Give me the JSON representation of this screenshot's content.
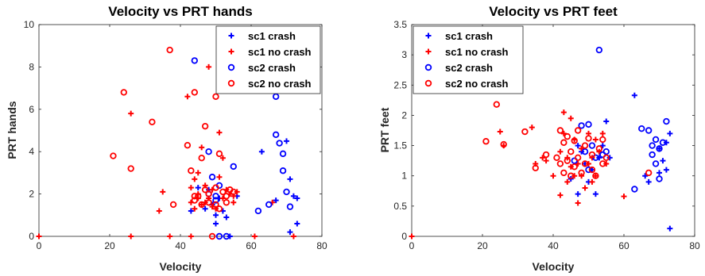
{
  "colors": {
    "sc1_crash": "#0000ff",
    "sc1_no_crash": "#ff0000",
    "sc2_crash": "#0000ff",
    "sc2_no_crash": "#ff0000"
  },
  "chart_data": [
    {
      "type": "scatter",
      "title": "Velocity vs PRT hands",
      "xlabel": "Velocity",
      "ylabel": "PRT hands",
      "xlim": [
        0,
        80
      ],
      "ylim": [
        0,
        10
      ],
      "xticks": [
        "0",
        "20",
        "40",
        "60",
        "80"
      ],
      "yticks": [
        "0",
        "2",
        "4",
        "6",
        "8",
        "10"
      ],
      "legend": {
        "location": "top-right",
        "entries": [
          "sc1 crash",
          "sc1 no crash",
          "sc2 crash",
          "sc2 no crash"
        ]
      },
      "grid": false,
      "series": [
        {
          "name": "sc1 crash",
          "marker": "plus",
          "color": "#0000ff",
          "points": [
            [
              43,
              1.2
            ],
            [
              45,
              2.3
            ],
            [
              47,
              1.3
            ],
            [
              49,
              1.5
            ],
            [
              50,
              1.0
            ],
            [
              51,
              1.8
            ],
            [
              52,
              1.2
            ],
            [
              53,
              0.9
            ],
            [
              54,
              0.0
            ],
            [
              50,
              0.6
            ],
            [
              56,
              1.9
            ],
            [
              63,
              4.0
            ],
            [
              67,
              1.7
            ],
            [
              70,
              4.5
            ],
            [
              71,
              2.7
            ],
            [
              71,
              0.2
            ],
            [
              72,
              1.9
            ],
            [
              73,
              0.6
            ],
            [
              73,
              1.8
            ],
            [
              48,
              2.2
            ]
          ]
        },
        {
          "name": "sc1 no crash",
          "marker": "plus",
          "color": "#ff0000",
          "points": [
            [
              0,
              0.0
            ],
            [
              26,
              5.8
            ],
            [
              26,
              0.0
            ],
            [
              34,
              1.2
            ],
            [
              35,
              2.1
            ],
            [
              37,
              0.0
            ],
            [
              42,
              6.6
            ],
            [
              43,
              0.0
            ],
            [
              43,
              1.6
            ],
            [
              43,
              2.3
            ],
            [
              44,
              1.3
            ],
            [
              45,
              1.8
            ],
            [
              45,
              3.0
            ],
            [
              45,
              2.0
            ],
            [
              46,
              1.5
            ],
            [
              47,
              1.6
            ],
            [
              47,
              2.4
            ],
            [
              48,
              8.0
            ],
            [
              48,
              1.8
            ],
            [
              49,
              1.4
            ],
            [
              49,
              2.2
            ],
            [
              50,
              1.3
            ],
            [
              51,
              4.9
            ],
            [
              51,
              2.8
            ],
            [
              52,
              1.8
            ],
            [
              52,
              3.7
            ],
            [
              53,
              2.2
            ],
            [
              54,
              2.0
            ],
            [
              55,
              1.9
            ],
            [
              55,
              1.6
            ],
            [
              56,
              2.1
            ],
            [
              61,
              0.0
            ],
            [
              66,
              1.6
            ],
            [
              72,
              0.0
            ],
            [
              44,
              2.7
            ],
            [
              46,
              4.2
            ]
          ]
        },
        {
          "name": "sc2 crash",
          "marker": "circle",
          "color": "#0000ff",
          "points": [
            [
              44,
              8.3
            ],
            [
              48,
              4.0
            ],
            [
              48,
              2.0
            ],
            [
              49,
              2.8
            ],
            [
              50,
              1.9
            ],
            [
              51,
              2.4
            ],
            [
              51,
              0.0
            ],
            [
              53,
              0.0
            ],
            [
              55,
              3.3
            ],
            [
              62,
              1.2
            ],
            [
              65,
              1.5
            ],
            [
              67,
              6.6
            ],
            [
              67,
              4.8
            ],
            [
              68,
              4.4
            ],
            [
              69,
              3.9
            ],
            [
              69,
              3.1
            ],
            [
              70,
              2.1
            ],
            [
              71,
              1.4
            ],
            [
              50,
              1.7
            ]
          ]
        },
        {
          "name": "sc2 no crash",
          "marker": "circle",
          "color": "#ff0000",
          "points": [
            [
              21,
              3.8
            ],
            [
              24,
              6.8
            ],
            [
              26,
              3.2
            ],
            [
              32,
              5.4
            ],
            [
              37,
              8.8
            ],
            [
              38,
              1.5
            ],
            [
              42,
              4.3
            ],
            [
              43,
              3.1
            ],
            [
              44,
              6.8
            ],
            [
              44,
              1.7
            ],
            [
              45,
              1.9
            ],
            [
              46,
              3.7
            ],
            [
              46,
              1.5
            ],
            [
              47,
              5.2
            ],
            [
              47,
              2.2
            ],
            [
              48,
              2.0
            ],
            [
              48,
              1.6
            ],
            [
              49,
              0.0
            ],
            [
              50,
              6.6
            ],
            [
              50,
              2.3
            ],
            [
              50,
              1.5
            ],
            [
              51,
              1.3
            ],
            [
              51,
              3.9
            ],
            [
              52,
              2.1
            ],
            [
              53,
              1.9
            ],
            [
              53,
              1.6
            ],
            [
              54,
              2.2
            ],
            [
              55,
              2.1
            ],
            [
              44,
              1.9
            ]
          ]
        }
      ]
    },
    {
      "type": "scatter",
      "title": "Velocity vs PRT feet",
      "xlabel": "Velocity",
      "ylabel": "PRT feet",
      "xlim": [
        0,
        80
      ],
      "ylim": [
        0,
        3.5
      ],
      "xticks": [
        "0",
        "20",
        "40",
        "60",
        "80"
      ],
      "yticks": [
        "0",
        "0.5",
        "1",
        "1.5",
        "2",
        "2.5",
        "3",
        "3.5"
      ],
      "legend": {
        "location": "top-left",
        "entries": [
          "sc1 crash",
          "sc1 no crash",
          "sc2 crash",
          "sc2 no crash"
        ]
      },
      "grid": false,
      "series": [
        {
          "name": "sc1 crash",
          "marker": "plus",
          "color": "#0000ff",
          "points": [
            [
              45,
              0.95
            ],
            [
              47,
              0.7
            ],
            [
              48,
              1.4
            ],
            [
              49,
              1.2
            ],
            [
              50,
              0.9
            ],
            [
              51,
              1.1
            ],
            [
              52,
              0.7
            ],
            [
              53,
              1.3
            ],
            [
              54,
              1.5
            ],
            [
              55,
              1.9
            ],
            [
              56,
              1.3
            ],
            [
              63,
              2.33
            ],
            [
              66,
              1.0
            ],
            [
              67,
              0.9
            ],
            [
              70,
              1.45
            ],
            [
              70,
              1.05
            ],
            [
              71,
              1.25
            ],
            [
              72,
              1.1
            ],
            [
              72,
              1.55
            ],
            [
              73,
              0.13
            ],
            [
              73,
              1.7
            ],
            [
              47,
              1.5
            ]
          ]
        },
        {
          "name": "sc1 no crash",
          "marker": "plus",
          "color": "#ff0000",
          "points": [
            [
              0,
              0.0
            ],
            [
              25,
              1.73
            ],
            [
              26,
              1.5
            ],
            [
              34,
              1.8
            ],
            [
              35,
              1.2
            ],
            [
              37,
              1.3
            ],
            [
              38,
              1.25
            ],
            [
              40,
              1.0
            ],
            [
              42,
              0.68
            ],
            [
              42,
              1.4
            ],
            [
              43,
              2.05
            ],
            [
              43,
              1.7
            ],
            [
              44,
              0.9
            ],
            [
              44,
              1.3
            ],
            [
              45,
              1.15
            ],
            [
              46,
              1.0
            ],
            [
              46,
              1.6
            ],
            [
              47,
              0.55
            ],
            [
              47,
              1.2
            ],
            [
              48,
              1.0
            ],
            [
              48,
              1.45
            ],
            [
              49,
              0.8
            ],
            [
              50,
              1.2
            ],
            [
              50,
              1.7
            ],
            [
              51,
              0.9
            ],
            [
              51,
              1.3
            ],
            [
              52,
              1.0
            ],
            [
              52,
              1.6
            ],
            [
              53,
              1.4
            ],
            [
              54,
              1.7
            ],
            [
              55,
              1.2
            ],
            [
              45,
              1.95
            ],
            [
              60,
              0.66
            ]
          ]
        },
        {
          "name": "sc2 crash",
          "marker": "circle",
          "color": "#0000ff",
          "points": [
            [
              46,
              1.25
            ],
            [
              48,
              1.83
            ],
            [
              49,
              1.4
            ],
            [
              50,
              1.85
            ],
            [
              50,
              1.1
            ],
            [
              51,
              1.5
            ],
            [
              52,
              1.3
            ],
            [
              53,
              3.08
            ],
            [
              54,
              1.35
            ],
            [
              55,
              1.4
            ],
            [
              63,
              0.78
            ],
            [
              65,
              1.78
            ],
            [
              67,
              1.75
            ],
            [
              68,
              1.5
            ],
            [
              68,
              1.35
            ],
            [
              69,
              1.2
            ],
            [
              69,
              1.6
            ],
            [
              70,
              1.45
            ],
            [
              70,
              0.95
            ],
            [
              72,
              1.9
            ],
            [
              71,
              1.55
            ]
          ]
        },
        {
          "name": "sc2 no crash",
          "marker": "circle",
          "color": "#ff0000",
          "points": [
            [
              21,
              1.57
            ],
            [
              24,
              2.18
            ],
            [
              26,
              1.52
            ],
            [
              32,
              1.73
            ],
            [
              35,
              1.13
            ],
            [
              38,
              1.35
            ],
            [
              41,
              1.3
            ],
            [
              42,
              1.2
            ],
            [
              43,
              1.55
            ],
            [
              43,
              1.05
            ],
            [
              44,
              1.65
            ],
            [
              44,
              1.25
            ],
            [
              45,
              1.4
            ],
            [
              45,
              1.0
            ],
            [
              46,
              1.58
            ],
            [
              46,
              1.15
            ],
            [
              47,
              1.75
            ],
            [
              47,
              1.3
            ],
            [
              48,
              1.05
            ],
            [
              49,
              1.5
            ],
            [
              49,
              1.2
            ],
            [
              50,
              1.62
            ],
            [
              51,
              1.1
            ],
            [
              51,
              1.35
            ],
            [
              52,
              1.0
            ],
            [
              53,
              1.45
            ],
            [
              54,
              1.6
            ],
            [
              54,
              1.2
            ],
            [
              55,
              1.3
            ],
            [
              67,
              1.05
            ],
            [
              42,
              1.75
            ]
          ]
        }
      ]
    }
  ]
}
